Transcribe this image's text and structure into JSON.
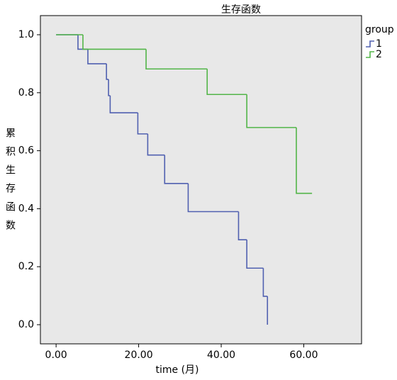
{
  "chart_data": {
    "type": "step",
    "title": "生存函数",
    "xlabel": "time (月)",
    "ylabel": "累积生存函数",
    "legend_title": "group",
    "legend": "right",
    "xlim": [
      -3.8,
      74
    ],
    "ylim": [
      -0.066,
      1.066
    ],
    "xticks": [
      {
        "value": 0,
        "label": "0.00"
      },
      {
        "value": 20,
        "label": "20.00"
      },
      {
        "value": 40,
        "label": "40.00"
      },
      {
        "value": 60,
        "label": "60.00"
      }
    ],
    "yticks": [
      {
        "value": 0,
        "label": "0.0"
      },
      0.2,
      0.4,
      0.6,
      0.8,
      {
        "value": 1,
        "label": "1.0"
      }
    ],
    "series": [
      {
        "name": "1",
        "color": "#5060b0",
        "x": [
          0,
          5.3,
          7.7,
          12.2,
          12.7,
          13.1,
          19.8,
          22.2,
          26.3,
          32,
          44.2,
          46.2,
          50.2,
          51.2
        ],
        "values": [
          1,
          0.95,
          0.9,
          0.846,
          0.79,
          0.731,
          0.658,
          0.585,
          0.487,
          0.39,
          0.293,
          0.195,
          0.098,
          0
        ]
      },
      {
        "name": "2",
        "color": "#52b548",
        "x": [
          0,
          6.5,
          21.8,
          36.6,
          46.2,
          58.2,
          62
        ],
        "values": [
          1,
          0.95,
          0.882,
          0.794,
          0.68,
          0.453,
          0.453
        ]
      }
    ]
  }
}
